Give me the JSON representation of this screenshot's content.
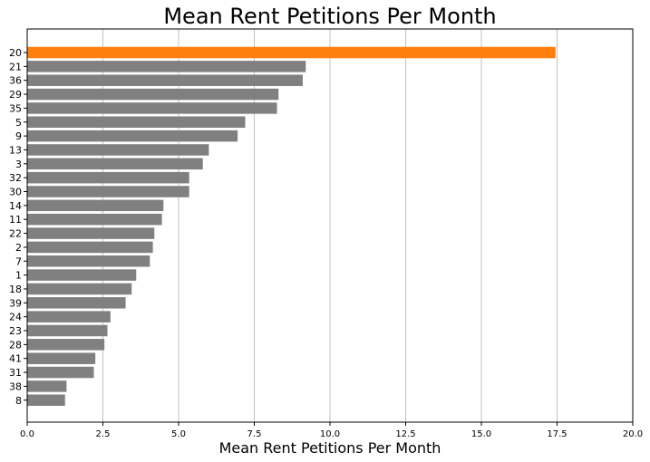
{
  "chart_data": {
    "type": "bar",
    "orientation": "horizontal",
    "title": "Mean Rent Petitions Per Month",
    "xlabel": "Mean Rent Petitions Per Month",
    "ylabel": "",
    "xlim": [
      0,
      20
    ],
    "x_ticks": [
      "0.0",
      "2.5",
      "5.0",
      "7.5",
      "10.0",
      "12.5",
      "15.0",
      "17.5",
      "20.0"
    ],
    "grid": "vertical",
    "highlight_color": "#ff7f0e",
    "bar_color": "#808080",
    "categories": [
      "20",
      "21",
      "36",
      "29",
      "35",
      "5",
      "9",
      "13",
      "3",
      "32",
      "30",
      "14",
      "11",
      "22",
      "2",
      "7",
      "1",
      "18",
      "39",
      "24",
      "23",
      "28",
      "41",
      "31",
      "38",
      "8"
    ],
    "values": [
      17.45,
      9.2,
      9.1,
      8.3,
      8.25,
      7.2,
      6.95,
      6.0,
      5.8,
      5.35,
      5.35,
      4.5,
      4.45,
      4.2,
      4.15,
      4.05,
      3.6,
      3.45,
      3.25,
      2.75,
      2.65,
      2.55,
      2.25,
      2.2,
      1.3,
      1.25
    ],
    "highlighted": [
      "20"
    ]
  }
}
